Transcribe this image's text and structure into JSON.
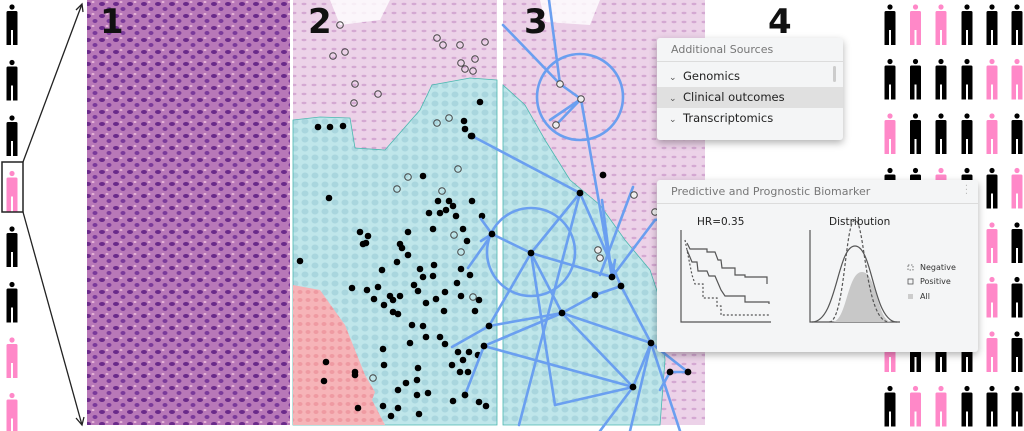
{
  "panels": {
    "p1": "1",
    "p2": "2",
    "p3": "3",
    "p4": "4"
  },
  "colors": {
    "pink": "#ff88c8",
    "black": "#000000",
    "graph_blue": "#6a9ff0",
    "tumor_cyan": "#bfe6ea",
    "stroma_pink": "#ecd0e6"
  },
  "cohort_left": [
    "black",
    "black",
    "black",
    "pink",
    "black",
    "black",
    "pink",
    "pink"
  ],
  "cohort_grid": [
    [
      "black",
      "pink",
      "pink",
      "black",
      "black",
      "black"
    ],
    [
      "black",
      "black",
      "black",
      "black",
      "pink",
      "pink"
    ],
    [
      "pink",
      "black",
      "black",
      "black",
      "pink",
      "black"
    ],
    [
      "black",
      "black",
      "pink",
      "black",
      "black",
      "pink"
    ],
    [
      "black",
      "black",
      "black",
      "black",
      "pink",
      "black"
    ],
    [
      "black",
      "black",
      "black",
      "black",
      "pink",
      "black"
    ],
    [
      "pink",
      "black",
      "black",
      "black",
      "pink",
      "black"
    ],
    [
      "black",
      "pink",
      "pink",
      "black",
      "black",
      "black"
    ]
  ],
  "additional_sources": {
    "title": "Additional Sources",
    "items": [
      {
        "label": "Genomics",
        "icon": "chevron-down-icon"
      },
      {
        "label": "Clinical outcomes",
        "icon": "chevron-down-icon",
        "highlighted": true
      },
      {
        "label": "Transcriptomics",
        "icon": "chevron-down-icon"
      }
    ]
  },
  "biomarker": {
    "title": "Predictive and Prognostic Biomarker",
    "survival_title": "HR=0.35",
    "distribution_title": "Distribution",
    "legend": [
      {
        "label": "Negative",
        "style": "dashed"
      },
      {
        "label": "Positive",
        "style": "solid"
      },
      {
        "label": "All",
        "style": "filled"
      }
    ]
  }
}
